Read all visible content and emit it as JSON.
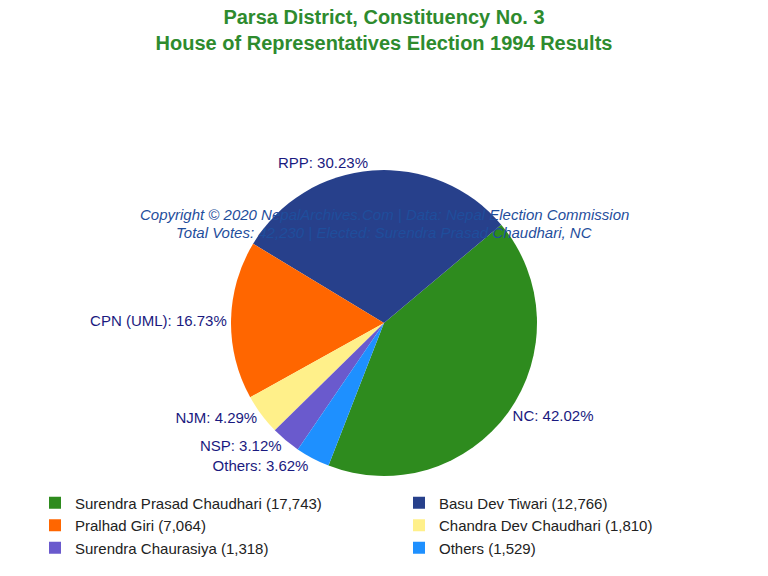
{
  "chart_data": {
    "type": "pie",
    "title": [
      "Parsa District, Constituency No. 3",
      "House of Representatives Election 1994 Results"
    ],
    "subtitle": "Copyright © 2020 NepalArchives.Com | Data: Nepal Election Commission",
    "annotations": [
      "Total Votes: 42,230 | Elected: Surendra Prasad Chaudhari, NC"
    ],
    "legend_labels": [
      "Surendra Prasad Chaudhari (17,743)",
      "Basu Dev Tiwari (12,766)",
      "Pralhad Giri (7,064)",
      "Chandra Dev Chaudhari (1,810)",
      "Surendra Chaurasiya (1,318)",
      "Others (1,529)"
    ],
    "values": [
      42.02,
      30.23,
      16.73,
      4.29,
      3.12,
      3.62
    ],
    "value_labels": [
      "NC: 42.02%",
      "RPP: 30.23%",
      "CPN (UML): 16.73%",
      "NJM: 4.29%",
      "NSP: 3.12%",
      "Others: 3.62%"
    ],
    "colors": [
      "#2e8b1e",
      "#27408b",
      "#ff6600",
      "#fff08a",
      "#6a5acd",
      "#1e90ff"
    ],
    "data_labels": true,
    "legend": "bottom"
  }
}
